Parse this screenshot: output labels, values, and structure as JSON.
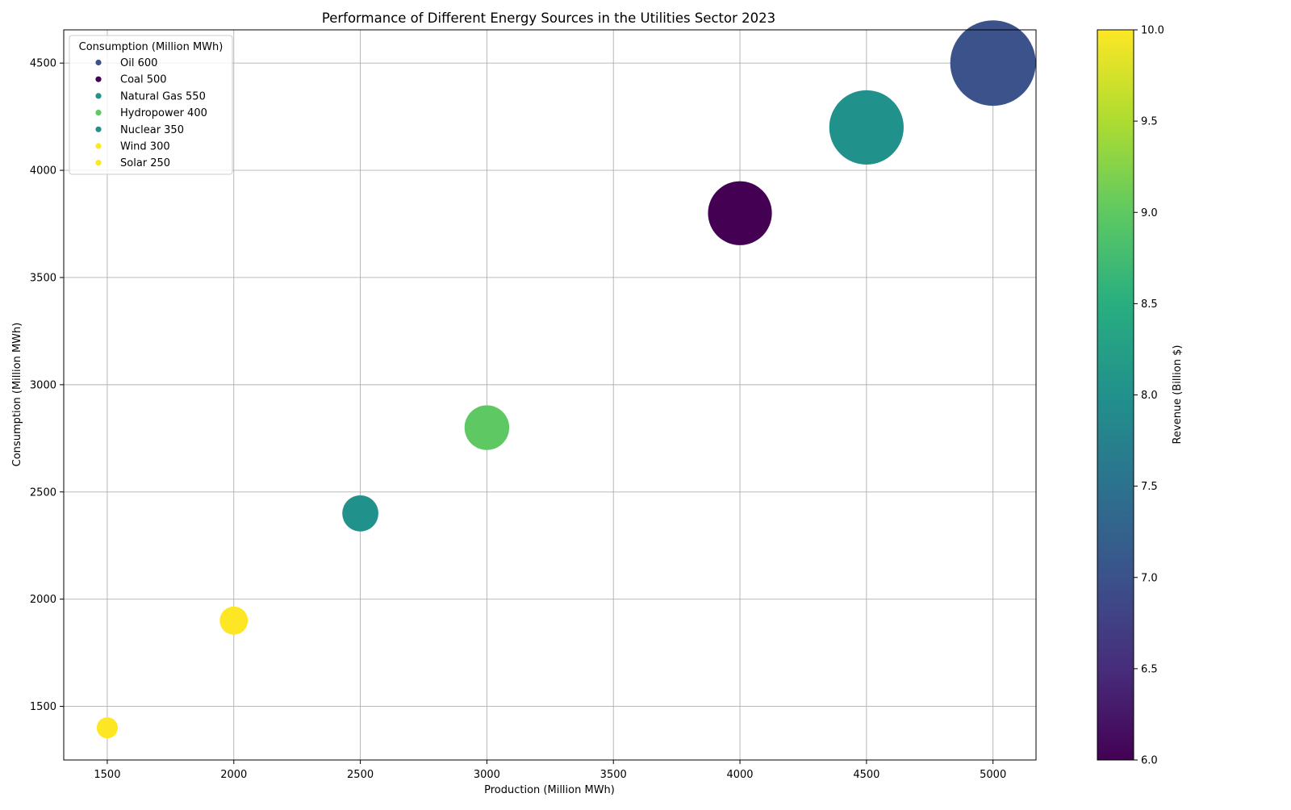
{
  "chart_data": {
    "type": "scatter",
    "title": "Performance of Different Energy Sources in the Utilities Sector 2023",
    "xlabel": "Production (Million MWh)",
    "ylabel": "Consumption (Million MWh)",
    "xlim": [
      1328,
      5170
    ],
    "ylim": [
      1250,
      4655
    ],
    "xticks": [
      1500,
      2000,
      2500,
      3000,
      3500,
      4000,
      4500,
      5000
    ],
    "yticks": [
      1500,
      2000,
      2500,
      3000,
      3500,
      4000,
      4500
    ],
    "grid": true,
    "legend_title": "Consumption (Million MWh)",
    "legend_position": "top-left",
    "colorbar": {
      "label": "Revenue (Billion $)",
      "range": [
        6.0,
        10.0
      ],
      "ticks": [
        "6.0",
        "6.5",
        "7.0",
        "7.5",
        "8.0",
        "8.5",
        "9.0",
        "9.5",
        "10.0"
      ],
      "colormap": "viridis"
    },
    "points": [
      {
        "name": "Solar",
        "legend": "Solar 250",
        "x": 1500,
        "y": 1400,
        "size": 250,
        "revenue": 10.0,
        "color": "#fde725"
      },
      {
        "name": "Wind",
        "legend": "Wind 300",
        "x": 2000,
        "y": 1900,
        "size": 300,
        "revenue": 10.0,
        "color": "#fde725"
      },
      {
        "name": "Nuclear",
        "legend": "Nuclear 350",
        "x": 2500,
        "y": 2400,
        "size": 350,
        "revenue": 8.0,
        "color": "#21918c"
      },
      {
        "name": "Hydropower",
        "legend": "Hydropower 400",
        "x": 3000,
        "y": 2800,
        "size": 400,
        "revenue": 9.0,
        "color": "#5ec962"
      },
      {
        "name": "Coal",
        "legend": "Coal 500",
        "x": 4000,
        "y": 3800,
        "size": 500,
        "revenue": 6.0,
        "color": "#440154"
      },
      {
        "name": "Natural Gas",
        "legend": "Natural Gas 550",
        "x": 4500,
        "y": 4200,
        "size": 550,
        "revenue": 8.0,
        "color": "#21918c"
      },
      {
        "name": "Oil",
        "legend": "Oil 600",
        "x": 5000,
        "y": 4500,
        "size": 600,
        "revenue": 7.0,
        "color": "#3b528b"
      }
    ],
    "legend_order": [
      "Oil",
      "Coal",
      "Natural Gas",
      "Hydropower",
      "Nuclear",
      "Wind",
      "Solar"
    ]
  }
}
